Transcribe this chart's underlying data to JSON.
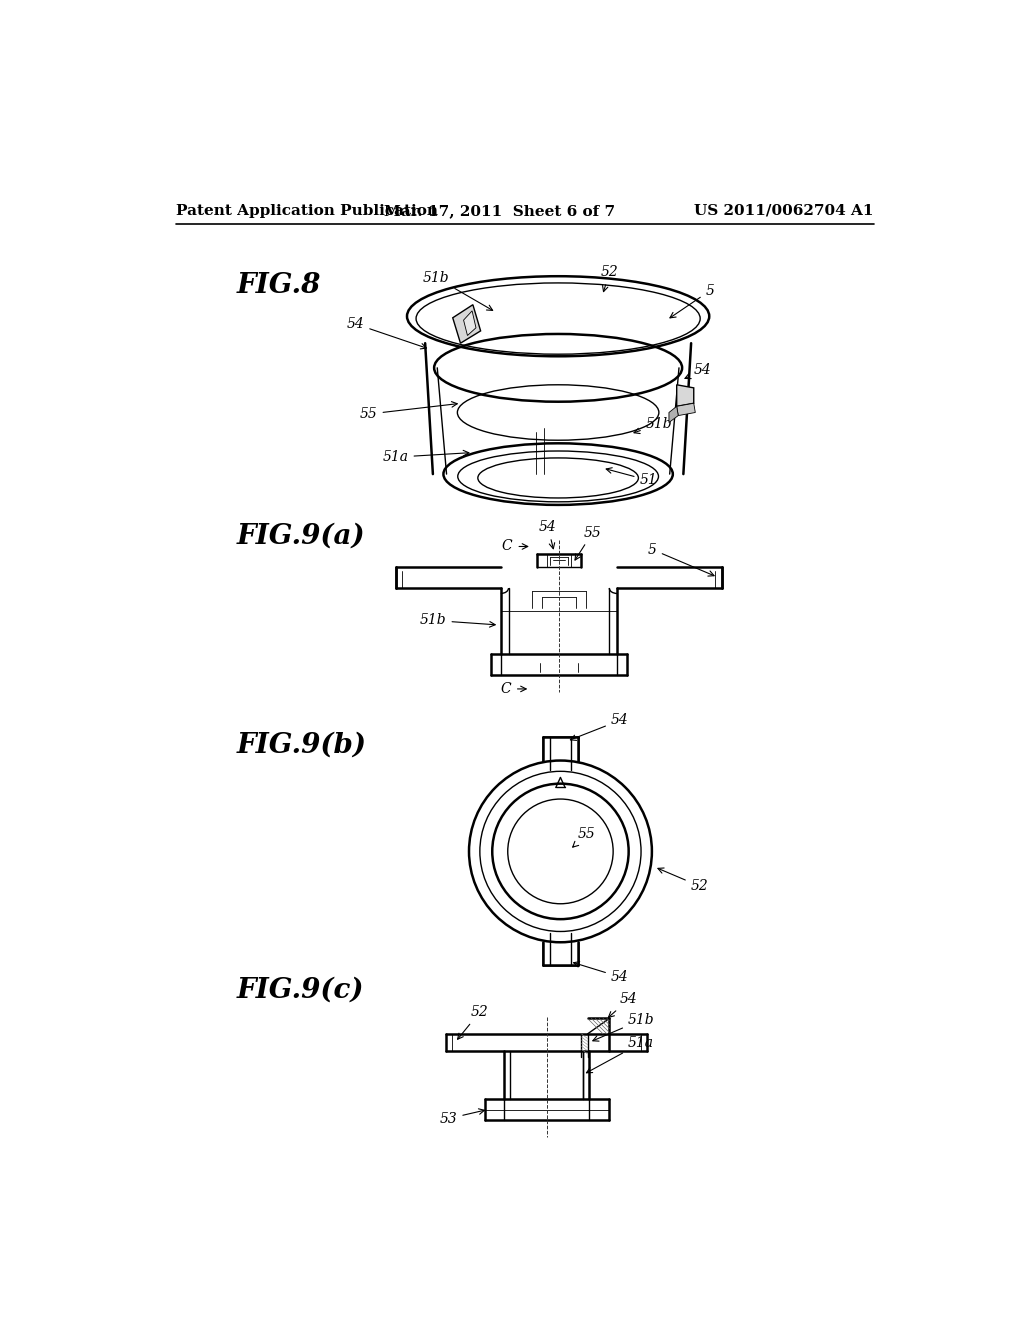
{
  "background_color": "#ffffff",
  "header_left": "Patent Application Publication",
  "header_mid": "Mar. 17, 2011  Sheet 6 of 7",
  "header_right": "US 2011/0062704 A1",
  "fig8_label": "FIG.8",
  "fig9a_label": "FIG.9(a)",
  "fig9b_label": "FIG.9(b)",
  "fig9c_label": "FIG.9(c)",
  "line_color": "#000000",
  "ann_fs": 10,
  "fig_label_fs": 20,
  "header_fontsize": 11
}
